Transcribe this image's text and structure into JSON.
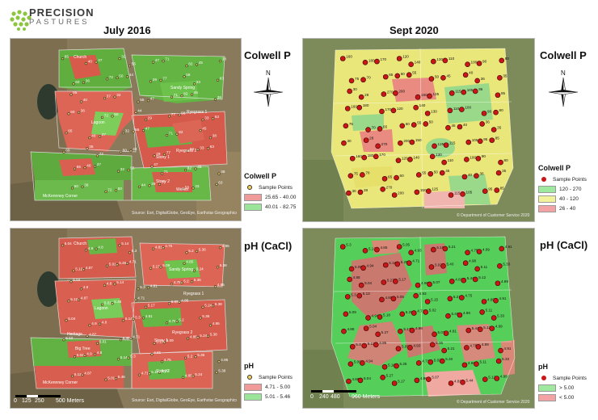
{
  "brand": {
    "name": "PRECISION",
    "sub": "PASTURES"
  },
  "headings": {
    "left": "July 2016",
    "right": "Sept 2020"
  },
  "panels": {
    "top_left": {
      "labels": [
        "Church",
        "Lagoon",
        "Sandy Spring",
        "Ryegrass 1",
        "Ryegrass 2",
        "Stony 1",
        "Stony 2",
        "Wellen",
        "McKennney Corner"
      ],
      "copyright": "Source: Esri, DigitalGlobe, GeoEye, Earthstar Geographics, CNES/Airbus DS, USDA, USGS, AeroGRID, IGN, and the GIS User Community"
    },
    "top_right": {
      "copyright": "© Department of Customer Service 2020"
    },
    "bottom_left": {
      "labels": [
        "Church",
        "Lagoon",
        "Sandy Spring",
        "Ryegrass 1",
        "Ryegrass 2",
        "Heritage",
        "Big Tree",
        "Stony 1",
        "Stony 2",
        "McKennney Corner"
      ],
      "scale": [
        "0",
        "125",
        "250",
        "500 Meters"
      ],
      "copyright": "Source: Esri, DigitalGlobe, GeoEye, Earthstar Geographics, CNES/Airbus DS, USDA, USGS, AeroGRID, IGN, and the GIS User Community"
    },
    "bottom_right": {
      "scale": [
        "0",
        "240",
        "480",
        "960 Meters"
      ],
      "copyright": "© Department of Customer Service 2020"
    }
  },
  "side": {
    "colwell_title": "Colwell P",
    "ph_title": "pH (CaCl)",
    "colwell_left": {
      "title": "Colwell P",
      "sample": "Sample Points",
      "rows": [
        {
          "label": "25.65 - 40.00",
          "color": "#f19a9a"
        },
        {
          "label": "40.01 - 82.75",
          "color": "#9be59b"
        }
      ]
    },
    "colwell_right": {
      "title": "Colwell P",
      "sample": "Sample Points",
      "rows": [
        {
          "label": "120 - 270",
          "color": "#9ee99e"
        },
        {
          "label": "40 - 120",
          "color": "#f2f29a"
        },
        {
          "label": "26 - 40",
          "color": "#f3a3a3"
        }
      ]
    },
    "ph_left": {
      "title": "pH",
      "sample": "Sample Points",
      "rows": [
        {
          "label": "4.71 - 5.00",
          "color": "#f19a9a"
        },
        {
          "label": "5.01 - 5.46",
          "color": "#9be59b"
        }
      ]
    },
    "ph_right": {
      "title": "pH",
      "sample": "Sample Points",
      "rows": [
        {
          "label": "> 5.00",
          "color": "#9ee99e"
        },
        {
          "label": "< 5.00",
          "color": "#f3a3a3"
        }
      ]
    }
  },
  "sample_values": {
    "colwell_2020": [
      "160",
      "180",
      "170",
      "120",
      "140",
      "130",
      "110",
      "100",
      "90",
      "80",
      "75",
      "70",
      "65",
      "60",
      "55",
      "50",
      "45",
      "40",
      "36",
      "35",
      "30",
      "28",
      "270",
      "200",
      "150",
      "125",
      "115",
      "105",
      "95",
      "85"
    ],
    "ph_2020": [
      "5.3",
      "5.13",
      "4.85",
      "5.05",
      "4.93",
      "5.15",
      "5.21",
      "4.75",
      "4.89",
      "4.91",
      "5.09",
      "4.94",
      "5.18",
      "5.25",
      "4.71",
      "5.02",
      "5.40",
      "4.98",
      "5.11",
      "5.33",
      "4.88",
      "5.04",
      "5.27",
      "5.17",
      "4.96",
      "5.07",
      "4.81",
      "5.44",
      "5.12",
      "4.99"
    ],
    "colwell_2016": [
      "65",
      "40",
      "37",
      "32",
      "55",
      "47",
      "71",
      "82",
      "45",
      "38",
      "60",
      "36",
      "72",
      "50",
      "44",
      "29",
      "77",
      "58",
      "33",
      "63"
    ],
    "ph_2016": [
      "5.04",
      "4.9",
      "4.8",
      "5.14",
      "5.3",
      "4.81",
      "4.75",
      "5.2",
      "5.36",
      "4.95",
      "5.12",
      "4.87",
      "5.01",
      "5.46",
      "4.71",
      "5.17",
      "5.09",
      "4.85",
      "5.24",
      "5.38"
    ]
  }
}
